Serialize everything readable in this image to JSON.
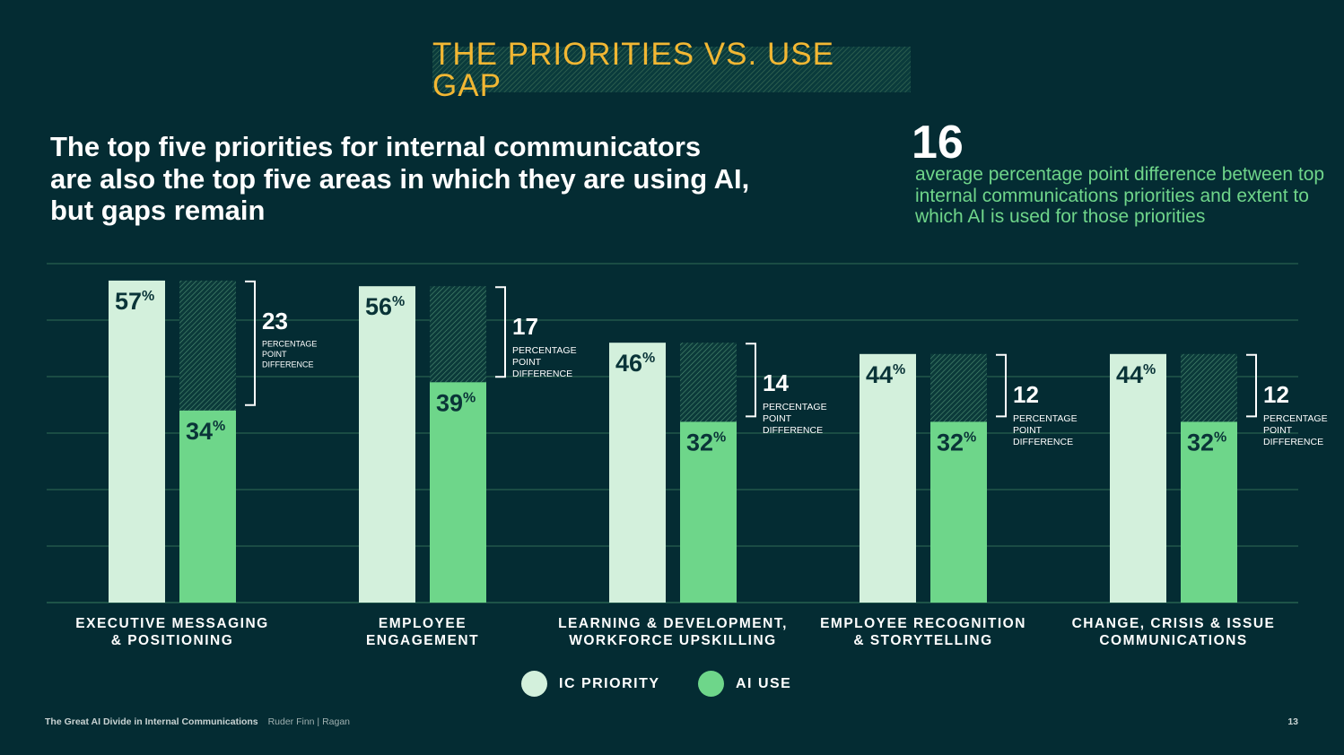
{
  "banner_title": "THE PRIORITIES VS. USE GAP",
  "headline": {
    "line1": "The top five priorities for internal communicators",
    "line2": "are also the top five areas in which they are using AI,",
    "line3": "but gaps remain"
  },
  "stat": {
    "number": "16",
    "description": "average percentage point difference between top internal communications priorities and extent to which AI is used for those priorities"
  },
  "colors": {
    "background": "#042c33",
    "ic_priority": "#d3f0dc",
    "ai_use": "#6ed68a",
    "banner_text": "#f2b733",
    "accent_text": "#6fd58a"
  },
  "chart_data": {
    "type": "bar",
    "categories": [
      [
        "EXECUTIVE MESSAGING",
        "& POSITIONING"
      ],
      [
        "EMPLOYEE",
        "ENGAGEMENT"
      ],
      [
        "LEARNING & DEVELOPMENT,",
        "WORKFORCE UPSKILLING"
      ],
      [
        "EMPLOYEE RECOGNITION",
        "& STORYTELLING"
      ],
      [
        "CHANGE, CRISIS & ISSUE",
        "COMMUNICATIONS"
      ]
    ],
    "series": [
      {
        "name": "IC PRIORITY",
        "values": [
          57,
          56,
          46,
          44,
          44
        ]
      },
      {
        "name": "AI USE",
        "values": [
          34,
          39,
          32,
          32,
          32
        ]
      }
    ],
    "differences": [
      23,
      17,
      14,
      12,
      12
    ],
    "difference_label": [
      "PERCENTAGE",
      "POINT",
      "DIFFERENCE"
    ],
    "value_suffix": "%",
    "ylim": [
      0,
      60
    ],
    "grid": true,
    "legend_position": "bottom"
  },
  "legend": [
    {
      "label": "IC PRIORITY",
      "color": "#d3f0dc"
    },
    {
      "label": "AI USE",
      "color": "#6ed68a"
    }
  ],
  "footer": {
    "publication": "The Great AI Divide in Internal Communications",
    "organizations": "Ruder Finn | Ragan",
    "page_number": "13"
  }
}
